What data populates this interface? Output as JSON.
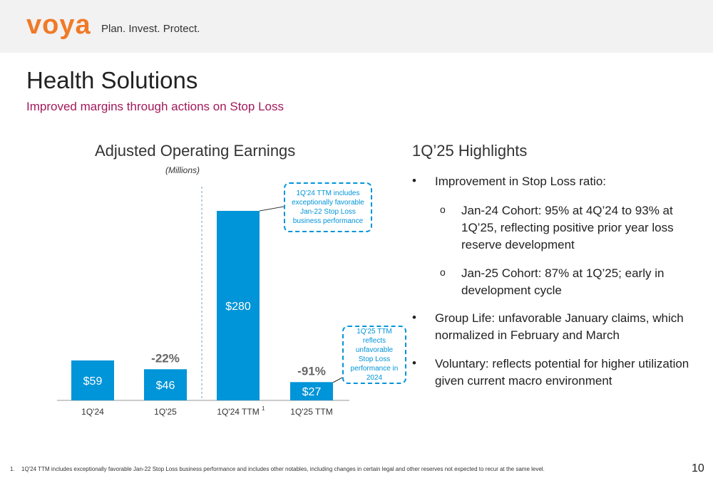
{
  "header": {
    "logo_text": "voya",
    "tagline": "Plan. Invest. Protect."
  },
  "page": {
    "title": "Health Solutions",
    "subtitle": "Improved margins through actions on Stop Loss",
    "page_number": "10"
  },
  "chart_data": {
    "type": "bar",
    "title": "Adjusted Operating Earnings",
    "units_label": "(Millions)",
    "categories": [
      "1Q'24",
      "1Q'25",
      "1Q'24 TTM",
      "1Q'25 TTM"
    ],
    "values": [
      59,
      46,
      280,
      27
    ],
    "value_labels": [
      "$59",
      "$46",
      "$280",
      "$27"
    ],
    "bar_color": "#0094d8",
    "change_labels": [
      {
        "category": "1Q'25",
        "text": "-22%"
      },
      {
        "category": "1Q'25 TTM",
        "text": "-91%"
      }
    ],
    "footnote_marker": {
      "category": "1Q'24 TTM",
      "text": "1"
    },
    "callouts": [
      {
        "target": "1Q'24 TTM",
        "text": "1Q'24 TTM includes exceptionally favorable Jan-22 Stop Loss business performance"
      },
      {
        "target": "1Q'25 TTM",
        "text": "1Q'25 TTM reflects unfavorable Stop Loss performance in 2024"
      }
    ]
  },
  "highlights": {
    "title": "1Q’25 Highlights",
    "items": [
      {
        "bullet": "•",
        "text": "Improvement in Stop Loss ratio:"
      },
      {
        "bullet": "o",
        "text": "Jan-24 Cohort: 95% at 4Q’24 to 93% at 1Q’25, reflecting positive prior year loss reserve development"
      },
      {
        "bullet": "o",
        "text": "Jan-25 Cohort: 87% at 1Q’25; early in development cycle"
      },
      {
        "bullet": "•",
        "text": "Group Life: unfavorable January claims, which normalized in February and March"
      },
      {
        "bullet": "•",
        "text": "Voluntary: reflects potential for higher utilization given current macro environment"
      }
    ]
  },
  "footnote": {
    "number": "1.",
    "text": "1Q'24 TTM includes exceptionally favorable Jan-22 Stop Loss business performance and includes other notables, including changes in certain legal and other reserves not expected to recur at the same level."
  }
}
